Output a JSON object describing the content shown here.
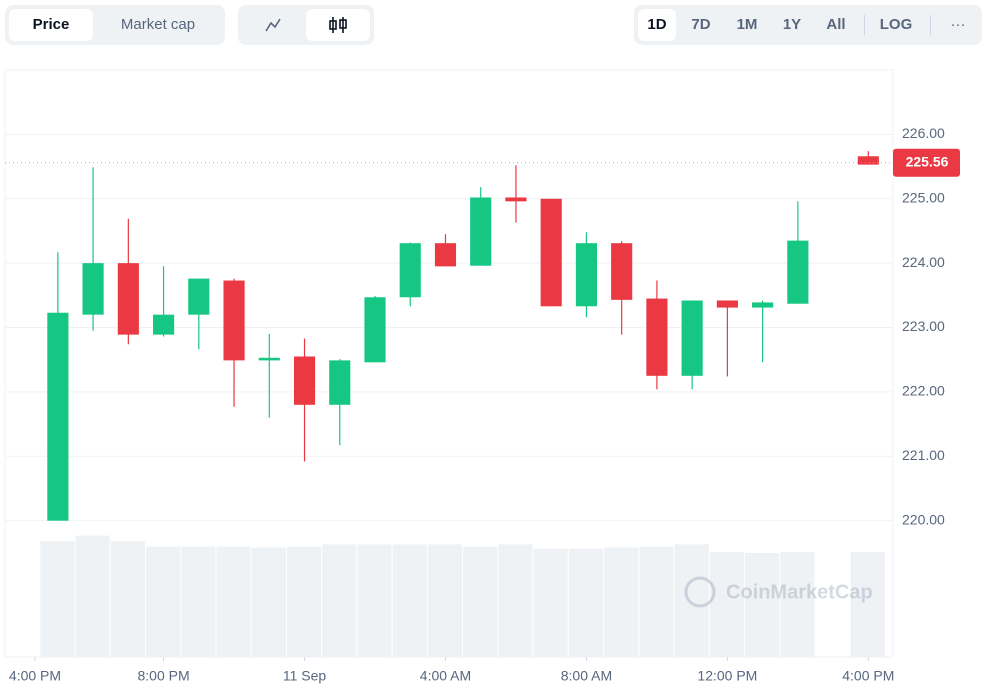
{
  "toolbar": {
    "tabs": [
      "Price",
      "Market cap"
    ],
    "ranges": [
      "1D",
      "7D",
      "1M",
      "1Y",
      "All",
      "LOG"
    ],
    "more": "···"
  },
  "watermark": "CoinMarketCap",
  "chart_data": {
    "type": "candlestick",
    "x": [
      0,
      1,
      2,
      3,
      4,
      5,
      6,
      7,
      8,
      9,
      10,
      11,
      12,
      13,
      14,
      15,
      16,
      17,
      18,
      19,
      20,
      21,
      23
    ],
    "open": [
      220.0,
      223.2,
      224.0,
      222.89,
      223.2,
      223.73,
      222.49,
      222.55,
      221.8,
      222.46,
      223.47,
      224.31,
      223.96,
      225.02,
      225.0,
      223.33,
      224.31,
      223.45,
      222.25,
      223.42,
      223.31,
      223.37,
      225.66
    ],
    "high": [
      224.17,
      225.49,
      224.69,
      223.95,
      223.76,
      223.76,
      222.9,
      222.83,
      222.51,
      223.49,
      224.32,
      224.45,
      225.18,
      225.52,
      225.0,
      224.48,
      224.34,
      223.73,
      223.42,
      223.42,
      223.42,
      224.96,
      225.74
    ],
    "low": [
      220.0,
      222.95,
      222.74,
      222.86,
      222.66,
      221.77,
      221.6,
      220.92,
      221.17,
      222.46,
      223.33,
      223.95,
      223.96,
      224.63,
      223.33,
      223.16,
      222.89,
      222.04,
      222.04,
      222.24,
      222.46,
      223.37,
      225.53
    ],
    "close": [
      223.23,
      224.0,
      222.89,
      223.2,
      223.76,
      222.49,
      222.53,
      221.8,
      222.49,
      223.47,
      224.31,
      223.95,
      225.02,
      224.96,
      223.33,
      224.31,
      223.43,
      222.25,
      223.42,
      223.31,
      223.39,
      224.35,
      225.53
    ],
    "volume": [
      107,
      112,
      107,
      102,
      102,
      102,
      101,
      102,
      104,
      104,
      104,
      104,
      102,
      104,
      100,
      100,
      101,
      102,
      104,
      97,
      96,
      97,
      97
    ],
    "volume_ylim": [
      0,
      120
    ],
    "up_color": "#16c784",
    "down_color": "#ea3943",
    "volume_color": "#eff2f5",
    "last_price": 225.56,
    "last_price_label": "225.56",
    "xlim": [
      -1.5,
      23.7
    ],
    "xticks": [
      {
        "value": -1,
        "label": "4:00 PM"
      },
      {
        "value": 3,
        "label": "8:00 PM"
      },
      {
        "value": 7,
        "label": "11 Sep"
      },
      {
        "value": 11,
        "label": "4:00 AM"
      },
      {
        "value": 15,
        "label": "8:00 AM"
      },
      {
        "value": 19,
        "label": "12:00 PM"
      },
      {
        "value": 23,
        "label": "4:00 PM"
      }
    ],
    "ylim": [
      219.7,
      227.0
    ],
    "yticks": [
      {
        "value": 220,
        "label": "220.00"
      },
      {
        "value": 221,
        "label": "221.00"
      },
      {
        "value": 222,
        "label": "222.00"
      },
      {
        "value": 223,
        "label": "223.00"
      },
      {
        "value": 224,
        "label": "224.00"
      },
      {
        "value": 225,
        "label": "225.00"
      },
      {
        "value": 226,
        "label": "226.00"
      }
    ],
    "grid": true
  }
}
